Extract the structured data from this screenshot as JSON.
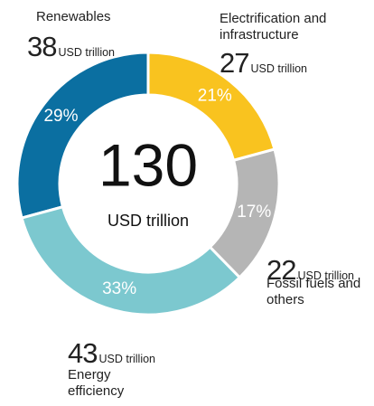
{
  "chart_data": {
    "type": "pie",
    "donut": true,
    "total": 130,
    "unit": "USD trillion",
    "categories": [
      "Electrification and infrastructure",
      "Fossil fuels and others",
      "Energy efficiency",
      "Renewables"
    ],
    "values": [
      27,
      22,
      43,
      38
    ],
    "share_labels": [
      "21%",
      "17%",
      "33%",
      "29%"
    ],
    "colors": [
      "#f9c31f",
      "#b5b5b5",
      "#7cc8cf",
      "#0b6fa1"
    ]
  }
}
